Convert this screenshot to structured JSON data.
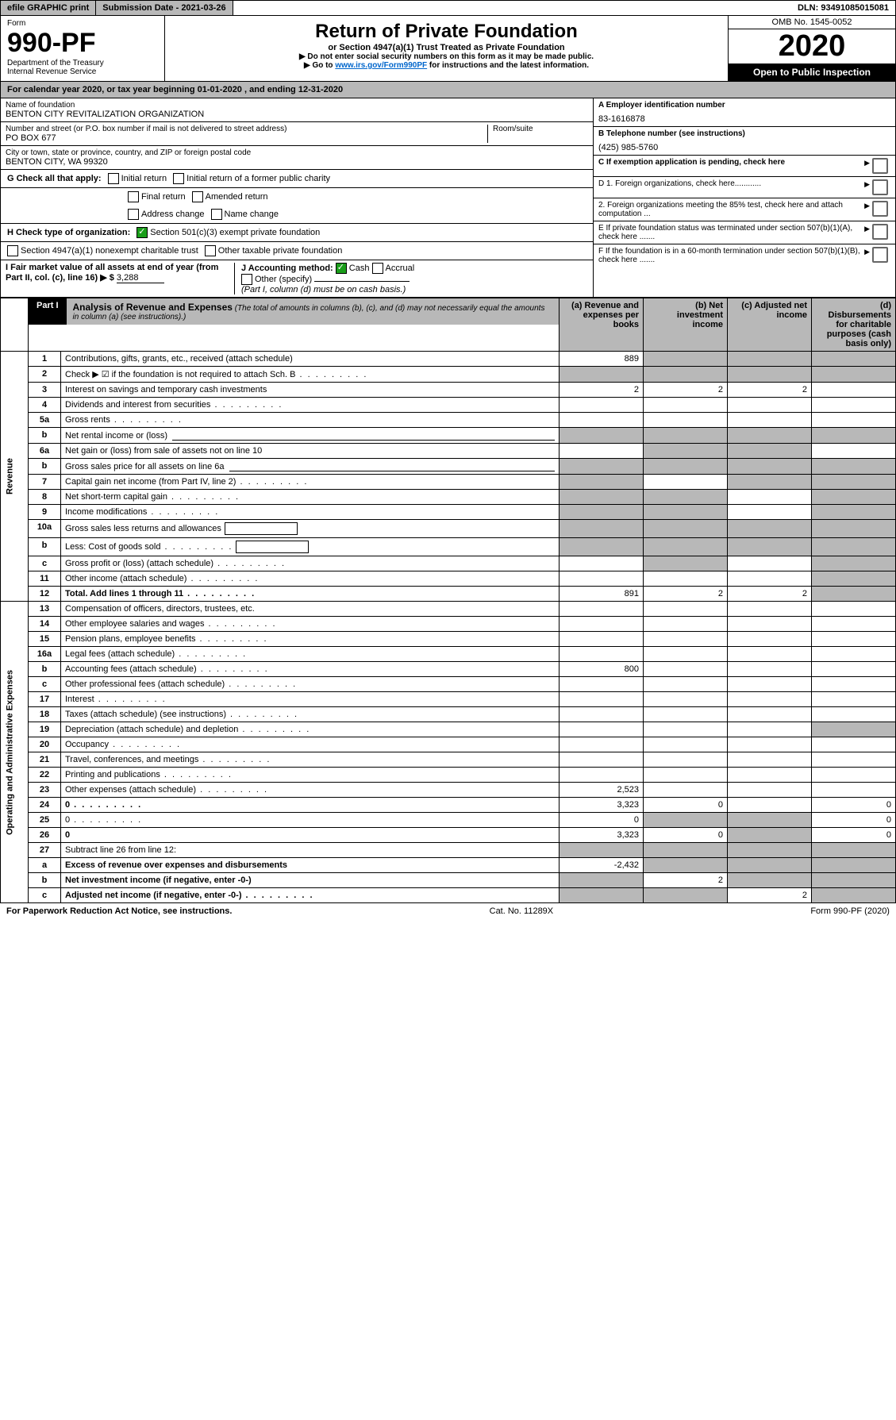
{
  "topbar": {
    "efile": "efile GRAPHIC print",
    "subdate_label": "Submission Date - 2021-03-26",
    "dln": "DLN: 93491085015081"
  },
  "header": {
    "form_word": "Form",
    "form_num": "990-PF",
    "dept": "Department of the Treasury",
    "irs": "Internal Revenue Service",
    "title": "Return of Private Foundation",
    "subtitle": "or Section 4947(a)(1) Trust Treated as Private Foundation",
    "warn1": "▶ Do not enter social security numbers on this form as it may be made public.",
    "warn2_pre": "▶ Go to ",
    "warn2_link": "www.irs.gov/Form990PF",
    "warn2_post": " for instructions and the latest information.",
    "omb": "OMB No. 1545-0052",
    "year": "2020",
    "inspect": "Open to Public Inspection"
  },
  "calyear": {
    "pre": "For calendar year 2020, or tax year beginning ",
    "begin": "01-01-2020",
    "mid": " , and ending ",
    "end": "12-31-2020"
  },
  "id": {
    "name_label": "Name of foundation",
    "name": "BENTON CITY REVITALIZATION ORGANIZATION",
    "addr_label": "Number and street (or P.O. box number if mail is not delivered to street address)",
    "addr": "PO BOX 677",
    "room_label": "Room/suite",
    "city_label": "City or town, state or province, country, and ZIP or foreign postal code",
    "city": "BENTON CITY, WA  99320",
    "a_label": "A Employer identification number",
    "a_val": "83-1616878",
    "b_label": "B Telephone number (see instructions)",
    "b_val": "(425) 985-5760",
    "c_label": "C If exemption application is pending, check here",
    "d1": "D 1. Foreign organizations, check here............",
    "d2": "2. Foreign organizations meeting the 85% test, check here and attach computation ...",
    "e": "E  If private foundation status was terminated under section 507(b)(1)(A), check here .......",
    "f": "F  If the foundation is in a 60-month termination under section 507(b)(1)(B), check here .......",
    "g_label": "G Check all that apply:",
    "g_initial": "Initial return",
    "g_initial_former": "Initial return of a former public charity",
    "g_final": "Final return",
    "g_amended": "Amended return",
    "g_addr": "Address change",
    "g_name": "Name change",
    "h_label": "H Check type of organization:",
    "h_501": "Section 501(c)(3) exempt private foundation",
    "h_4947": "Section 4947(a)(1) nonexempt charitable trust",
    "h_other": "Other taxable private foundation",
    "i_label": "I Fair market value of all assets at end of year (from Part II, col. (c), line 16) ▶ $",
    "i_val": "3,288",
    "j_label": "J Accounting method:",
    "j_cash": "Cash",
    "j_accrual": "Accrual",
    "j_other": "Other (specify)",
    "j_note": "(Part I, column (d) must be on cash basis.)"
  },
  "part1": {
    "label": "Part I",
    "title": "Analysis of Revenue and Expenses",
    "note": " (The total of amounts in columns (b), (c), and (d) may not necessarily equal the amounts in column (a) (see instructions).)",
    "col_a": "(a)   Revenue and expenses per books",
    "col_b": "(b)  Net investment income",
    "col_c": "(c)  Adjusted net income",
    "col_d": "(d)  Disbursements for charitable purposes (cash basis only)"
  },
  "sections": {
    "revenue": "Revenue",
    "expenses": "Operating and Administrative Expenses"
  },
  "rows": [
    {
      "n": "1",
      "d": "Contributions, gifts, grants, etc., received (attach schedule)",
      "a": "889",
      "shade_bcd": true
    },
    {
      "n": "2",
      "d": "Check ▶ ☑ if the foundation is not required to attach Sch. B",
      "dots": true,
      "shade_bcd": true,
      "shade_a": true
    },
    {
      "n": "3",
      "d": "Interest on savings and temporary cash investments",
      "a": "2",
      "b": "2",
      "c": "2"
    },
    {
      "n": "4",
      "d": "Dividends and interest from securities",
      "dots": true
    },
    {
      "n": "5a",
      "d": "Gross rents",
      "dots": true
    },
    {
      "n": "b",
      "d": "Net rental income or (loss)",
      "blank": true,
      "shade_all": true
    },
    {
      "n": "6a",
      "d": "Net gain or (loss) from sale of assets not on line 10",
      "shade_bc": true
    },
    {
      "n": "b",
      "d": "Gross sales price for all assets on line 6a",
      "blank": true,
      "shade_all": true
    },
    {
      "n": "7",
      "d": "Capital gain net income (from Part IV, line 2)",
      "dots": true,
      "shade_a": true,
      "shade_cd": true
    },
    {
      "n": "8",
      "d": "Net short-term capital gain",
      "dots": true,
      "shade_ab": true,
      "shade_d": true
    },
    {
      "n": "9",
      "d": "Income modifications",
      "dots": true,
      "shade_ab": true,
      "shade_d": true
    },
    {
      "n": "10a",
      "d": "Gross sales less returns and allowances",
      "box": true,
      "shade_all": true
    },
    {
      "n": "b",
      "d": "Less: Cost of goods sold",
      "dots": true,
      "box": true,
      "shade_all": true
    },
    {
      "n": "c",
      "d": "Gross profit or (loss) (attach schedule)",
      "dots": true,
      "shade_b": true,
      "shade_d": true
    },
    {
      "n": "11",
      "d": "Other income (attach schedule)",
      "dots": true,
      "shade_d": true
    },
    {
      "n": "12",
      "d": "Total. Add lines 1 through 11",
      "dots": true,
      "bold": true,
      "a": "891",
      "b": "2",
      "c": "2",
      "shade_d": true
    }
  ],
  "exp_rows": [
    {
      "n": "13",
      "d": "Compensation of officers, directors, trustees, etc."
    },
    {
      "n": "14",
      "d": "Other employee salaries and wages",
      "dots": true
    },
    {
      "n": "15",
      "d": "Pension plans, employee benefits",
      "dots": true
    },
    {
      "n": "16a",
      "d": "Legal fees (attach schedule)",
      "dots": true
    },
    {
      "n": "b",
      "d": "Accounting fees (attach schedule)",
      "dots": true,
      "a": "800"
    },
    {
      "n": "c",
      "d": "Other professional fees (attach schedule)",
      "dots": true
    },
    {
      "n": "17",
      "d": "Interest",
      "dots": true
    },
    {
      "n": "18",
      "d": "Taxes (attach schedule) (see instructions)",
      "dots": true
    },
    {
      "n": "19",
      "d": "Depreciation (attach schedule) and depletion",
      "dots": true,
      "shade_d": true
    },
    {
      "n": "20",
      "d": "Occupancy",
      "dots": true
    },
    {
      "n": "21",
      "d": "Travel, conferences, and meetings",
      "dots": true
    },
    {
      "n": "22",
      "d": "Printing and publications",
      "dots": true
    },
    {
      "n": "23",
      "d": "Other expenses (attach schedule)",
      "dots": true,
      "a": "2,523"
    },
    {
      "n": "24",
      "d": "0",
      "dots": true,
      "bold": true,
      "a": "3,323",
      "b": "0"
    },
    {
      "n": "25",
      "d": "0",
      "dots": true,
      "a": "0",
      "shade_bc": true
    },
    {
      "n": "26",
      "d": "0",
      "bold": true,
      "a": "3,323",
      "b": "0",
      "shade_c": true
    },
    {
      "n": "27",
      "d": "Subtract line 26 from line 12:",
      "shade_all": true
    },
    {
      "n": "a",
      "d": "Excess of revenue over expenses and disbursements",
      "bold": true,
      "a": "-2,432",
      "shade_bcd": true
    },
    {
      "n": "b",
      "d": "Net investment income (if negative, enter -0-)",
      "bold": true,
      "shade_a": true,
      "b": "2",
      "shade_cd": true
    },
    {
      "n": "c",
      "d": "Adjusted net income (if negative, enter -0-)",
      "bold": true,
      "dots": true,
      "shade_ab": true,
      "c": "2",
      "shade_d": true
    }
  ],
  "footer": {
    "left": "For Paperwork Reduction Act Notice, see instructions.",
    "mid": "Cat. No. 11289X",
    "right": "Form 990-PF (2020)"
  }
}
